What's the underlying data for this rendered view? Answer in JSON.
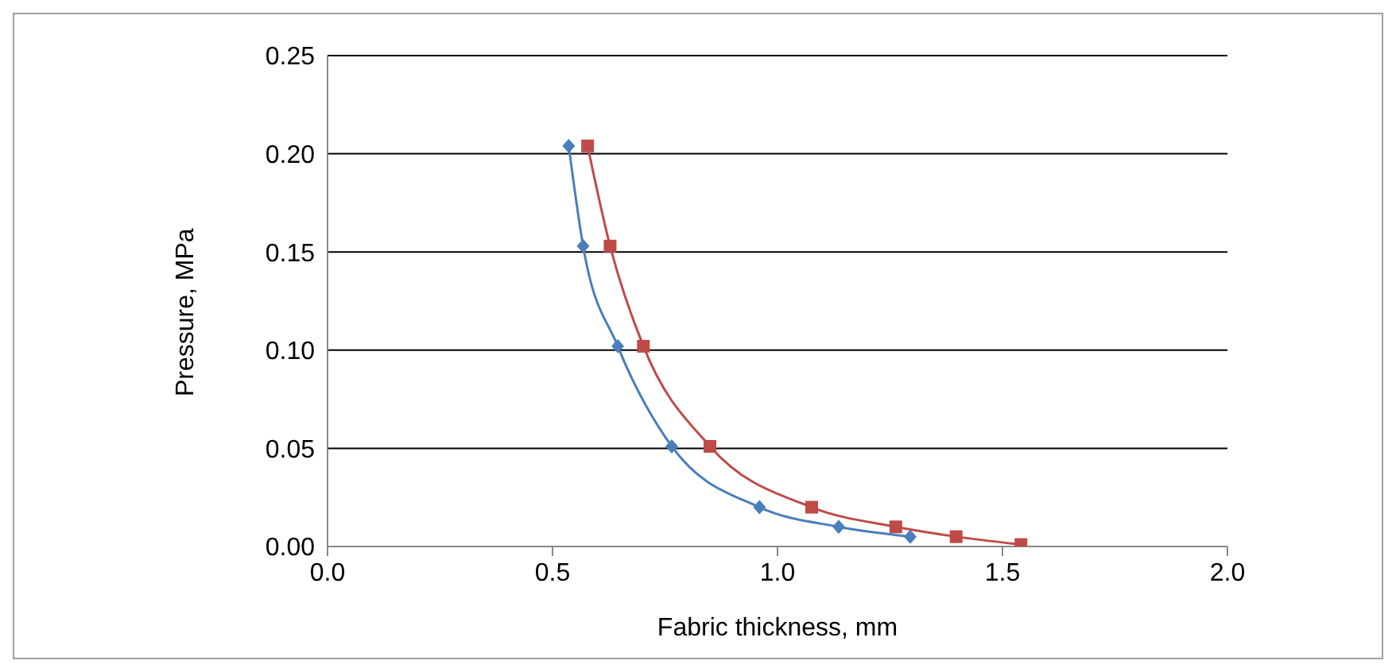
{
  "chart_data": {
    "type": "line",
    "xlabel": "Fabric thickness, mm",
    "ylabel": "Pressure, MPa",
    "xlim": [
      0,
      2
    ],
    "xticks": [
      {
        "value": 0,
        "label": "0.0"
      },
      {
        "value": 0.5,
        "label": "0.5"
      },
      {
        "value": 1,
        "label": "1.0"
      },
      {
        "value": 1.5,
        "label": "1.5"
      },
      {
        "value": 2,
        "label": "2.0"
      }
    ],
    "ylim": [
      0,
      0.25
    ],
    "yticks": [
      {
        "value": 0,
        "label": "0.00"
      },
      {
        "value": 0.05,
        "label": "0.05"
      },
      {
        "value": 0.1,
        "label": "0.10"
      },
      {
        "value": 0.15,
        "label": "0.15"
      },
      {
        "value": 0.2,
        "label": "0.20"
      },
      {
        "value": 0.25,
        "label": "0.25"
      }
    ],
    "grid": "y",
    "series": [
      {
        "color": "#4a7ebb",
        "marker": "diamond",
        "x": [
          0.536,
          0.568,
          0.645,
          0.765,
          0.96,
          1.136,
          1.295
        ],
        "values": [
          0.204,
          0.153,
          0.102,
          0.051,
          0.02,
          0.01,
          0.005
        ]
      },
      {
        "color": "#be4b48",
        "marker": "square",
        "x": [
          0.578,
          0.628,
          0.702,
          0.85,
          1.076,
          1.263,
          1.397,
          1.541
        ],
        "values": [
          0.204,
          0.153,
          0.102,
          0.051,
          0.02,
          0.01,
          0.005,
          0.001
        ]
      }
    ]
  }
}
